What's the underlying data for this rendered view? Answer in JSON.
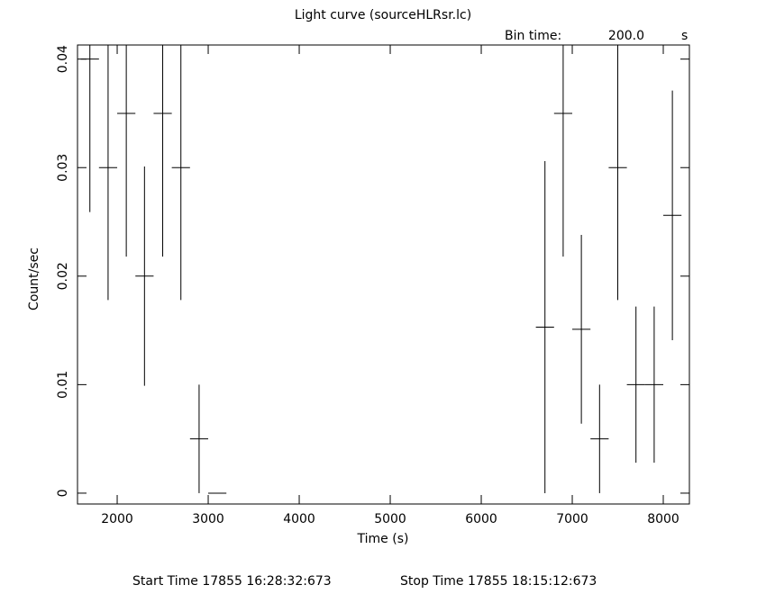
{
  "chart_data": {
    "type": "errorbar",
    "title": "Light curve (sourceHLRsr.lc)",
    "bin_time": {
      "label": "Bin time:",
      "value": "200.0",
      "unit": "s"
    },
    "xlabel": "Time (s)",
    "ylabel": "Count/sec",
    "footer": {
      "start": "Start Time 17855 16:28:32:673",
      "stop": "Stop Time 17855 18:15:12:673"
    },
    "x": [
      1700,
      1900,
      2100,
      2300,
      2500,
      2700,
      2900,
      3100,
      6700,
      6900,
      7100,
      7300,
      7500,
      7700,
      7900,
      8100
    ],
    "values": [
      0.04,
      0.03,
      0.035,
      0.02,
      0.035,
      0.03,
      0.005,
      0,
      0.0153,
      0.035,
      0.0151,
      0.005,
      0.03,
      0.01,
      0.01,
      0.0256
    ],
    "errors": [
      0.0141,
      0.0122,
      0.0132,
      0.0101,
      0.0132,
      0.0122,
      0.005,
      0,
      0.0153,
      0.0132,
      0.0087,
      0.005,
      0.0122,
      0.0072,
      0.0072,
      0.0115
    ],
    "color": "#000000",
    "xlim": [
      1564,
      8287
    ],
    "xticks": [
      2000,
      3000,
      4000,
      5000,
      6000,
      7000,
      8000
    ],
    "ylim": [
      -0.001,
      0.0413
    ],
    "yticks": [
      0,
      0.01,
      0.02,
      0.03,
      0.04
    ]
  }
}
